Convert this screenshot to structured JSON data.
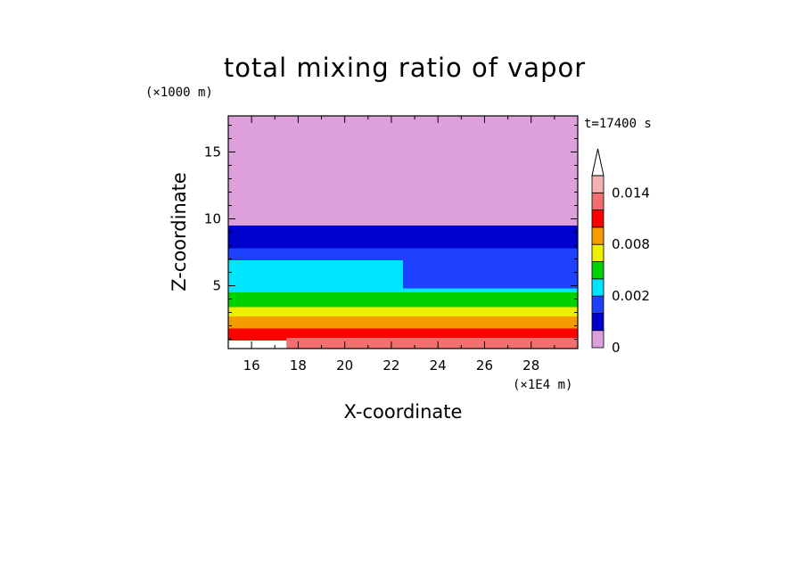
{
  "chart_data": {
    "type": "heatmap",
    "title": "total mixing ratio of vapor",
    "xlabel": "X-coordinate",
    "ylabel": "Z-coordinate",
    "x_unit": "(×1E4 m)",
    "y_unit": "(×1000 m)",
    "time_label": "t=17400 s",
    "xlim": [
      15,
      30
    ],
    "ylim": [
      0.3,
      17.7
    ],
    "x_ticks": [
      16,
      18,
      20,
      22,
      24,
      26,
      28
    ],
    "y_ticks": [
      5,
      10,
      15
    ],
    "colorbar": {
      "levels": [
        0,
        0.0005,
        0.001,
        0.002,
        0.004,
        0.006,
        0.008,
        0.01,
        0.012,
        0.014,
        0.016
      ],
      "labels": [
        "0",
        "0.002",
        "0.008",
        "0.014"
      ],
      "label_values": [
        0,
        0.002,
        0.008,
        0.014
      ],
      "colors": [
        "#dda0dd",
        "#0000cd",
        "#1e40ff",
        "#00e5ff",
        "#00d000",
        "#eeee00",
        "#f49b00",
        "#ff0000",
        "#f07070",
        "#f5b2b2"
      ],
      "extend": "max"
    },
    "regions": [
      {
        "level": 0,
        "x": [
          15,
          30
        ],
        "y": [
          9.5,
          17.7
        ]
      },
      {
        "level": 1,
        "x": [
          15,
          30
        ],
        "y": [
          7.8,
          9.5
        ]
      },
      {
        "level": 2,
        "x": [
          15,
          30
        ],
        "y": [
          4.5,
          7.8
        ]
      },
      {
        "level": 3,
        "x": [
          15,
          22.5
        ],
        "y": [
          4.0,
          6.9
        ]
      },
      {
        "level": 3,
        "x": [
          22.5,
          30
        ],
        "y": [
          3.6,
          4.8
        ]
      },
      {
        "level": 4,
        "x": [
          15,
          30
        ],
        "y": [
          2.8,
          4.5
        ]
      },
      {
        "level": 5,
        "x": [
          15,
          30
        ],
        "y": [
          2.2,
          3.4
        ]
      },
      {
        "level": 6,
        "x": [
          15,
          30
        ],
        "y": [
          1.5,
          2.7
        ]
      },
      {
        "level": 7,
        "x": [
          15,
          30
        ],
        "y": [
          0.9,
          1.8
        ]
      },
      {
        "level": 8,
        "x": [
          17.5,
          30
        ],
        "y": [
          0.3,
          1.1
        ]
      }
    ]
  }
}
